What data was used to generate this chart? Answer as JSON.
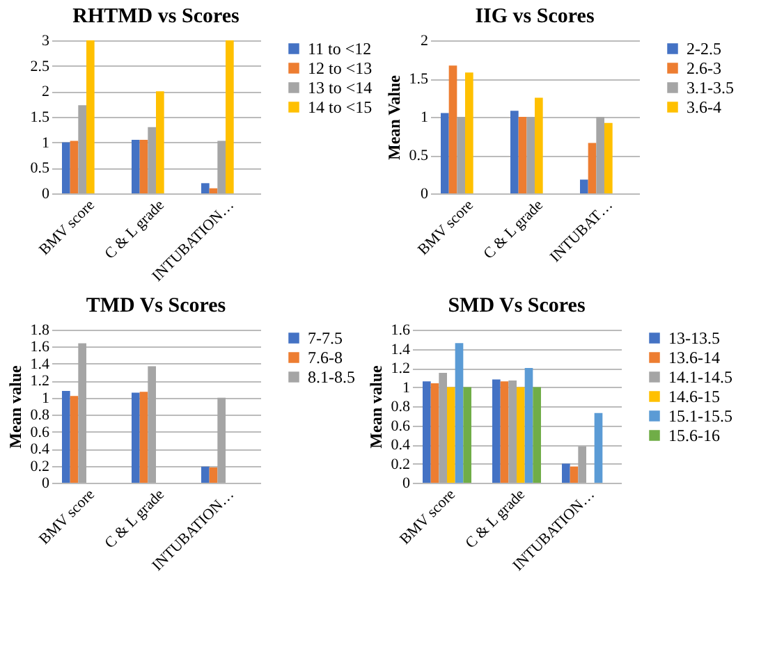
{
  "chart_data": [
    {
      "type": "bar",
      "title": "RHTMD vs Scores",
      "categories": [
        "BMV score",
        "C & L grade",
        "INTUBATION…"
      ],
      "ylim": [
        0,
        3
      ],
      "yticks": [
        0,
        0.5,
        1,
        1.5,
        2,
        2.5,
        3
      ],
      "grid": "y",
      "legend": "right",
      "series": [
        {
          "name": "11 to <12",
          "color": "#4472c4",
          "values": [
            1,
            1.05,
            0.2
          ]
        },
        {
          "name": "12 to <13",
          "color": "#ed7d31",
          "values": [
            1.03,
            1.05,
            0.1
          ]
        },
        {
          "name": "13 to <14",
          "color": "#a5a5a5",
          "values": [
            1.73,
            1.3,
            1.03
          ]
        },
        {
          "name": "14 to <15",
          "color": "#ffc000",
          "values": [
            3,
            2,
            3
          ]
        }
      ]
    },
    {
      "type": "bar",
      "title": "IIG  vs Scores",
      "ylabel": "Mean Value",
      "categories": [
        "BMV score",
        "C & L grade",
        "INTUBAT…"
      ],
      "ylim": [
        0,
        2
      ],
      "yticks": [
        0,
        0.5,
        1,
        1.5,
        2
      ],
      "grid": "y",
      "legend": "right",
      "series": [
        {
          "name": "2-2.5",
          "color": "#4472c4",
          "values": [
            1.05,
            1.08,
            0.18
          ]
        },
        {
          "name": "2.6-3",
          "color": "#ed7d31",
          "values": [
            1.67,
            1,
            0.66
          ]
        },
        {
          "name": "3.1-3.5",
          "color": "#a5a5a5",
          "values": [
            1,
            1,
            1
          ]
        },
        {
          "name": "3.6-4",
          "color": "#ffc000",
          "values": [
            1.58,
            1.25,
            0.92
          ]
        }
      ]
    },
    {
      "type": "bar",
      "title": "TMD   Vs Scores",
      "ylabel": "Mean value",
      "categories": [
        "BMV score",
        "C & L grade",
        "INTUBATION…"
      ],
      "ylim": [
        0,
        1.8
      ],
      "yticks": [
        0,
        0.2,
        0.4,
        0.6,
        0.8,
        1,
        1.2,
        1.4,
        1.6,
        1.8
      ],
      "grid": "y",
      "legend": "right",
      "series": [
        {
          "name": "7-7.5",
          "color": "#4472c4",
          "values": [
            1.08,
            1.06,
            0.19
          ]
        },
        {
          "name": "7.6-8",
          "color": "#ed7d31",
          "values": [
            1.02,
            1.07,
            0.18
          ]
        },
        {
          "name": "8.1-8.5",
          "color": "#a5a5a5",
          "values": [
            1.64,
            1.37,
            1
          ]
        }
      ]
    },
    {
      "type": "bar",
      "title": "SMD Vs Scores",
      "ylabel": "Mean value",
      "categories": [
        "BMV score",
        "C & L grade",
        "INTUBATION…"
      ],
      "ylim": [
        0,
        1.6
      ],
      "yticks": [
        0,
        0.2,
        0.4,
        0.6,
        0.8,
        1,
        1.2,
        1.4,
        1.6
      ],
      "grid": "y",
      "legend": "right",
      "series": [
        {
          "name": "13-13.5",
          "color": "#4472c4",
          "values": [
            1.06,
            1.08,
            0.2
          ]
        },
        {
          "name": "13.6-14",
          "color": "#ed7d31",
          "values": [
            1.04,
            1.06,
            0.17
          ]
        },
        {
          "name": "14.1-14.5",
          "color": "#a5a5a5",
          "values": [
            1.15,
            1.07,
            0.38
          ]
        },
        {
          "name": "14.6-15",
          "color": "#ffc000",
          "values": [
            1,
            1,
            0
          ]
        },
        {
          "name": "15.1-15.5",
          "color": "#5b9bd5",
          "values": [
            1.46,
            1.2,
            0.73
          ]
        },
        {
          "name": "15.6-16",
          "color": "#70ad47",
          "values": [
            1,
            1,
            0
          ]
        }
      ]
    }
  ]
}
